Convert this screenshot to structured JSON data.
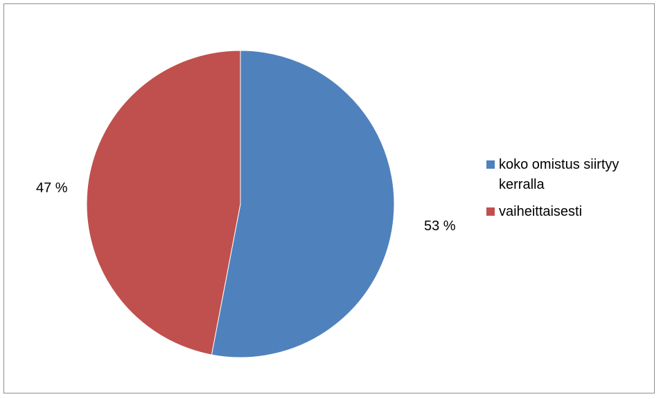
{
  "chart_data": {
    "type": "pie",
    "title": "",
    "slices": [
      {
        "label": "koko omistus siirtyy kerralla",
        "value": 53,
        "value_label": "53 %",
        "color": "#4F81BD"
      },
      {
        "label": "vaiheittaisesti",
        "value": 47,
        "value_label": "47 %",
        "color": "#C0504D"
      }
    ],
    "start_angle": "12 o'clock",
    "direction": "clockwise",
    "legend": {
      "position": "right",
      "items": [
        {
          "label": "koko omistus siirtyy kerralla",
          "color": "#4F81BD"
        },
        {
          "label": "vaiheittaisesti",
          "color": "#C0504D"
        }
      ]
    }
  }
}
